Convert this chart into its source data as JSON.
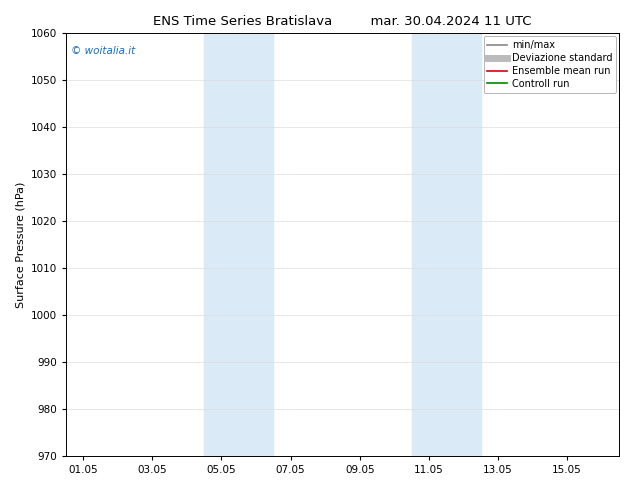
{
  "title_left": "ENS Time Series Bratislava",
  "title_right": "mar. 30.04.2024 11 UTC",
  "ylabel": "Surface Pressure (hPa)",
  "ylim": [
    970,
    1060
  ],
  "yticks": [
    970,
    980,
    990,
    1000,
    1010,
    1020,
    1030,
    1040,
    1050,
    1060
  ],
  "xtick_labels": [
    "01.05",
    "03.05",
    "05.05",
    "07.05",
    "09.05",
    "11.05",
    "13.05",
    "15.05"
  ],
  "xtick_positions": [
    0,
    2,
    4,
    6,
    8,
    10,
    12,
    14
  ],
  "xlim": [
    -0.5,
    15.5
  ],
  "shaded_regions": [
    {
      "start": 3.5,
      "end": 5.5,
      "color": "#daeaf7"
    },
    {
      "start": 9.5,
      "end": 11.5,
      "color": "#daeaf7"
    }
  ],
  "watermark_text": "© woitalia.it",
  "watermark_color": "#1a6bc4",
  "legend_entries": [
    {
      "label": "min/max",
      "color": "#888888",
      "lw": 1.2
    },
    {
      "label": "Deviazione standard",
      "color": "#bbbbbb",
      "lw": 5
    },
    {
      "label": "Ensemble mean run",
      "color": "#dd0000",
      "lw": 1.2
    },
    {
      "label": "Controll run",
      "color": "#008800",
      "lw": 1.2
    }
  ],
  "background_color": "#ffffff",
  "grid_color": "#dddddd",
  "title_fontsize": 9.5,
  "axis_label_fontsize": 8,
  "tick_fontsize": 7.5,
  "legend_fontsize": 7,
  "watermark_fontsize": 7.5
}
